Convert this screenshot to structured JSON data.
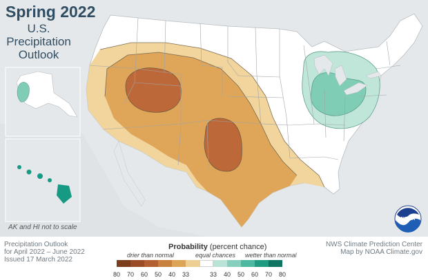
{
  "title": "Spring 2022",
  "subtitle_lines": [
    "U.S.",
    "Precipitation",
    "Outlook"
  ],
  "inset_note": "AK and HI not to scale",
  "left_meta": [
    "Precipitation Outlook",
    "for April 2022 – June 2022",
    "Issued 17 March 2022"
  ],
  "right_meta": [
    "NWS Climate Prediction Center",
    "Map by NOAA Climate.gov"
  ],
  "legend": {
    "title_bold": "Probability",
    "title_rest": " (percent chance)",
    "drier_label": "drier than normal",
    "equal_label": "equal chances",
    "wetter_label": "wetter than normal",
    "ticks": [
      "80",
      "70",
      "60",
      "50",
      "40",
      "33",
      "",
      "33",
      "40",
      "50",
      "60",
      "70",
      "80"
    ],
    "colors": [
      "#7a3e1c",
      "#9a4c27",
      "#b45f32",
      "#c9813f",
      "#dba457",
      "#edcf93",
      "#ffffff",
      "#b8e3d6",
      "#86cfbc",
      "#4db79f",
      "#1f9b83",
      "#0f7462"
    ]
  },
  "map_colors": {
    "land": "#ffffff",
    "outside": "#e5e8ea",
    "dry33": "#f1d59c",
    "dry40": "#dfa65a",
    "dry50": "#bd6838",
    "wet33": "#bfe6d9",
    "wet40": "#7fcdb5",
    "hawaii": "#179a83"
  },
  "logo_text": "NOAA"
}
